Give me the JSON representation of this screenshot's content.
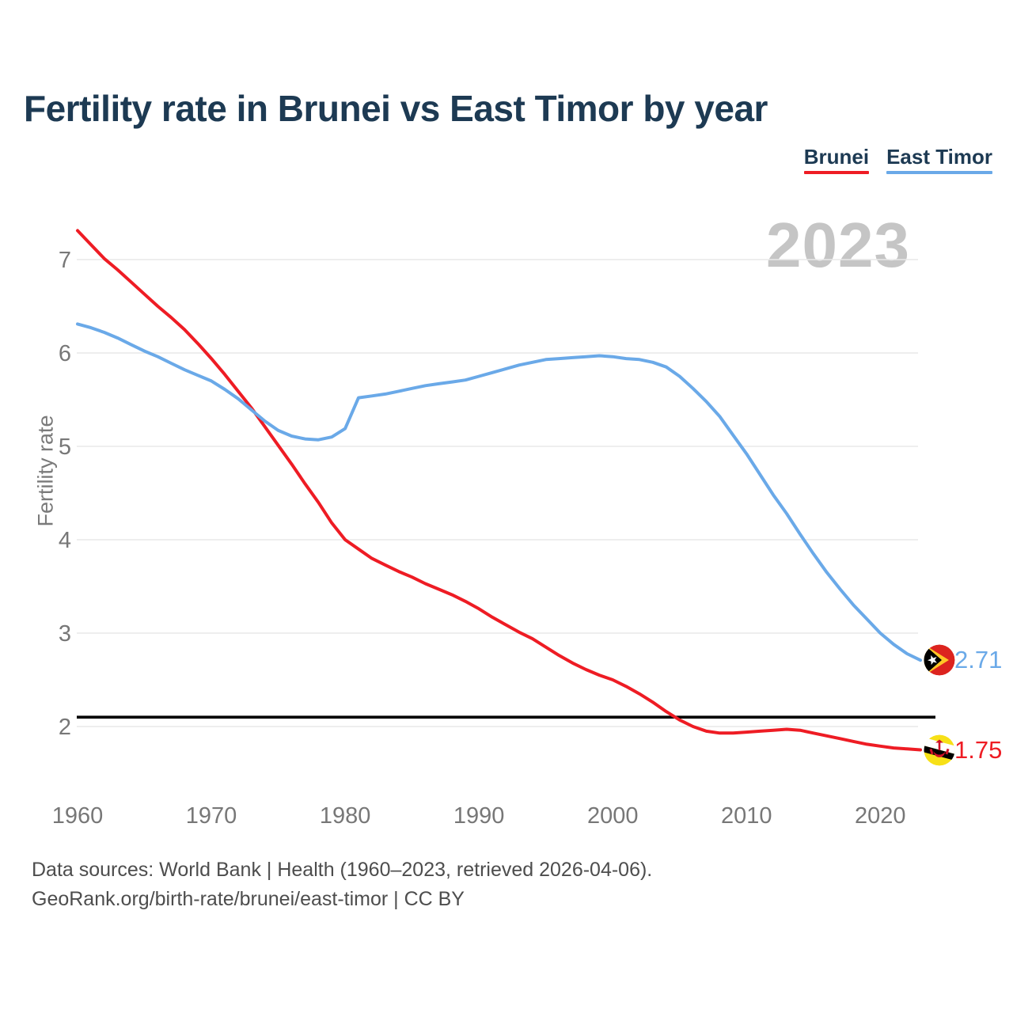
{
  "header": {
    "title": "Fertility rate in Brunei vs East Timor by year"
  },
  "legend": [
    {
      "id": "brunei",
      "label": "Brunei",
      "color": "#ee1c24"
    },
    {
      "id": "east-timor",
      "label": "East Timor",
      "color": "#6aa9e8"
    }
  ],
  "watermark": "2023",
  "axes": {
    "y_label": "Fertility rate",
    "y_ticks": [
      7,
      6,
      5,
      4,
      3,
      2
    ],
    "x_ticks": [
      1960,
      1970,
      1980,
      1990,
      2000,
      2010,
      2020
    ]
  },
  "end_labels": [
    {
      "series": "East Timor",
      "value": "2.71",
      "color": "#6aa9e8"
    },
    {
      "series": "Brunei",
      "value": "1.75",
      "color": "#ee1c24"
    }
  ],
  "footer": {
    "line1": "Data sources: World Bank | Health (1960–2023, retrieved 2026-04-06).",
    "line2": "GeoRank.org/birth-rate/brunei/east-timor | CC BY"
  },
  "chart_data": {
    "type": "line",
    "title": "Fertility rate in Brunei vs East Timor by year",
    "ylabel": "Fertility rate",
    "xlabel": "",
    "x_range": [
      1960,
      2023
    ],
    "ylim": [
      1.6,
      7.4
    ],
    "y_ticks": [
      2,
      3,
      4,
      5,
      6,
      7
    ],
    "x_ticks": [
      1960,
      1970,
      1980,
      1990,
      2000,
      2010,
      2020
    ],
    "grid": "horizontal",
    "legend_position": "top-right",
    "replacement_line": {
      "value": 2.1,
      "color": "#000000"
    },
    "start_year": 1960,
    "series": [
      {
        "name": "Brunei",
        "id": "brunei",
        "color": "#ee1c24",
        "final_value": 1.75,
        "values": [
          7.31,
          7.16,
          7.01,
          6.89,
          6.76,
          6.63,
          6.5,
          6.38,
          6.25,
          6.1,
          5.94,
          5.77,
          5.59,
          5.41,
          5.21,
          5.01,
          4.81,
          4.6,
          4.4,
          4.18,
          4.0,
          3.9,
          3.8,
          3.73,
          3.66,
          3.6,
          3.53,
          3.47,
          3.41,
          3.34,
          3.26,
          3.17,
          3.09,
          3.01,
          2.94,
          2.85,
          2.76,
          2.68,
          2.61,
          2.55,
          2.5,
          2.43,
          2.35,
          2.26,
          2.16,
          2.07,
          2.0,
          1.95,
          1.93,
          1.93,
          1.94,
          1.95,
          1.96,
          1.97,
          1.96,
          1.93,
          1.9,
          1.87,
          1.84,
          1.81,
          1.79,
          1.77,
          1.76,
          1.75
        ]
      },
      {
        "name": "East Timor",
        "id": "east-timor",
        "color": "#6aa9e8",
        "final_value": 2.71,
        "values": [
          6.31,
          6.27,
          6.22,
          6.16,
          6.09,
          6.02,
          5.96,
          5.89,
          5.82,
          5.76,
          5.7,
          5.61,
          5.51,
          5.39,
          5.27,
          5.17,
          5.11,
          5.08,
          5.07,
          5.1,
          5.19,
          5.52,
          5.54,
          5.56,
          5.59,
          5.62,
          5.65,
          5.67,
          5.69,
          5.71,
          5.75,
          5.79,
          5.83,
          5.87,
          5.9,
          5.93,
          5.94,
          5.95,
          5.96,
          5.97,
          5.96,
          5.94,
          5.93,
          5.9,
          5.85,
          5.75,
          5.62,
          5.48,
          5.32,
          5.12,
          4.92,
          4.7,
          4.48,
          4.28,
          4.06,
          3.85,
          3.65,
          3.47,
          3.3,
          3.15,
          3.0,
          2.88,
          2.78,
          2.71
        ]
      }
    ]
  }
}
